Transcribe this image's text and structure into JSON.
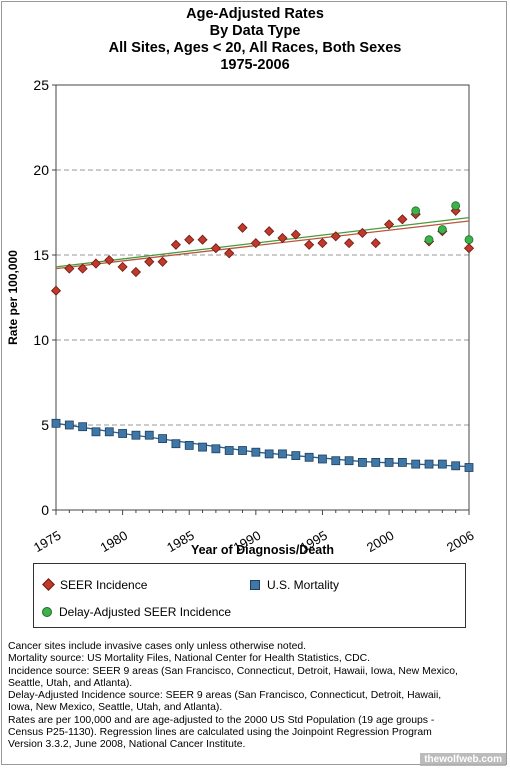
{
  "title_lines": [
    "Age-Adjusted  Rates",
    "By Data Type",
    "All Sites, Ages < 20, All Races, Both Sexes",
    "1975-2006"
  ],
  "chart_data": {
    "type": "scatter",
    "xlabel": "Year of Diagnosis/Death",
    "ylabel": "Rate per 100,000",
    "xlim": [
      1975,
      2006
    ],
    "ylim": [
      0,
      25
    ],
    "x_ticks": [
      1975,
      1980,
      1985,
      1990,
      1995,
      2000,
      2006
    ],
    "y_ticks": [
      0,
      5,
      10,
      15,
      20,
      25
    ],
    "grid": "horizontal dashed",
    "series": [
      {
        "name": "SEER Incidence",
        "marker": "diamond",
        "color": "#c0392b",
        "x": [
          1975,
          1976,
          1977,
          1978,
          1979,
          1980,
          1981,
          1982,
          1983,
          1984,
          1985,
          1986,
          1987,
          1988,
          1989,
          1990,
          1991,
          1992,
          1993,
          1994,
          1995,
          1996,
          1997,
          1998,
          1999,
          2000,
          2001,
          2002,
          2003,
          2004,
          2005,
          2006
        ],
        "y": [
          12.9,
          14.2,
          14.2,
          14.5,
          14.7,
          14.3,
          14.0,
          14.6,
          14.6,
          15.6,
          15.9,
          15.9,
          15.4,
          15.1,
          16.6,
          15.7,
          16.4,
          16.0,
          16.2,
          15.6,
          15.7,
          16.1,
          15.7,
          16.3,
          15.7,
          16.8,
          17.1,
          17.4,
          15.8,
          16.4,
          17.6,
          15.4
        ]
      },
      {
        "name": "U.S. Mortality",
        "marker": "square",
        "color": "#3f77a8",
        "x": [
          1975,
          1976,
          1977,
          1978,
          1979,
          1980,
          1981,
          1982,
          1983,
          1984,
          1985,
          1986,
          1987,
          1988,
          1989,
          1990,
          1991,
          1992,
          1993,
          1994,
          1995,
          1996,
          1997,
          1998,
          1999,
          2000,
          2001,
          2002,
          2003,
          2004,
          2005,
          2006
        ],
        "y": [
          5.1,
          5.0,
          4.9,
          4.6,
          4.6,
          4.5,
          4.4,
          4.4,
          4.2,
          3.9,
          3.8,
          3.7,
          3.6,
          3.5,
          3.5,
          3.4,
          3.3,
          3.3,
          3.2,
          3.1,
          3.0,
          2.9,
          2.9,
          2.8,
          2.8,
          2.8,
          2.8,
          2.7,
          2.7,
          2.7,
          2.6,
          2.5
        ]
      },
      {
        "name": "Delay-Adjusted SEER Incidence",
        "marker": "circle",
        "color": "#3cb34a",
        "x": [
          2002,
          2003,
          2004,
          2005,
          2006
        ],
        "y": [
          17.6,
          15.9,
          16.5,
          17.9,
          15.9
        ]
      }
    ],
    "regression_lines": [
      {
        "series": "SEER Incidence",
        "color": "#b8563f",
        "points": [
          [
            1975,
            14.2
          ],
          [
            2006,
            17.0
          ]
        ]
      },
      {
        "series": "Delay-Adjusted SEER Incidence",
        "color": "#4a9a3a",
        "points": [
          [
            1975,
            14.3
          ],
          [
            2006,
            17.2
          ]
        ]
      },
      {
        "series": "U.S. Mortality",
        "color": "#2c5f8c",
        "points": [
          [
            1975,
            5.1
          ],
          [
            1980,
            4.5
          ],
          [
            1990,
            3.4
          ],
          [
            1998,
            2.85
          ],
          [
            2006,
            2.55
          ]
        ]
      }
    ]
  },
  "legend": {
    "seer": "SEER Incidence",
    "mortality": "U.S. Mortality",
    "delay": "Delay-Adjusted SEER Incidence"
  },
  "notes": [
    "Cancer sites include invasive cases only unless otherwise noted.",
    "Mortality source: US Mortality Files, National Center for Health Statistics, CDC.",
    "Incidence source: SEER 9 areas (San Francisco, Connecticut, Detroit, Hawaii, Iowa, New Mexico,",
    "Seattle, Utah, and Atlanta).",
    "Delay-Adjusted Incidence source: SEER 9 areas (San Francisco, Connecticut, Detroit, Hawaii,",
    "Iowa, New Mexico, Seattle, Utah, and Atlanta).",
    "Rates are per 100,000 and are age-adjusted to the 2000 US Std Population (19 age groups -",
    "Census P25-1130). Regression lines are calculated using the Joinpoint Regression Program",
    "Version 3.3.2, June 2008, National Cancer Institute."
  ],
  "watermark": "thewolfweb.com"
}
